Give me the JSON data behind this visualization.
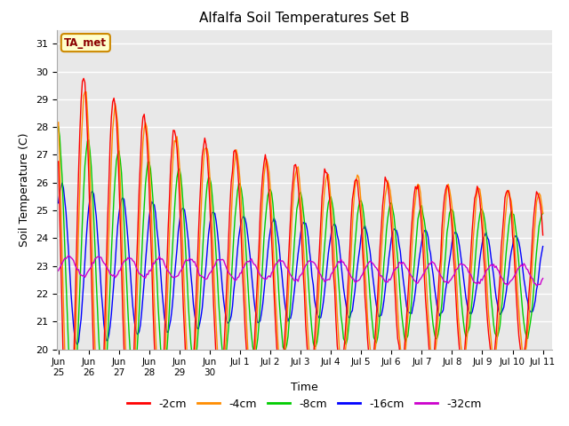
{
  "title": "Alfalfa Soil Temperatures Set B",
  "xlabel": "Time",
  "ylabel": "Soil Temperature (C)",
  "ylim": [
    20.0,
    31.5
  ],
  "yticks": [
    20.0,
    21.0,
    22.0,
    23.0,
    24.0,
    25.0,
    26.0,
    27.0,
    28.0,
    29.0,
    30.0,
    31.0
  ],
  "colors": {
    "-2cm": "#ff0000",
    "-4cm": "#ff8c00",
    "-8cm": "#00cc00",
    "-16cm": "#0000ff",
    "-32cm": "#cc00cc"
  },
  "legend_labels": [
    "-2cm",
    "-4cm",
    "-8cm",
    "-16cm",
    "-32cm"
  ],
  "annotation_text": "TA_met",
  "annotation_box_color": "#ffffcc",
  "annotation_box_edge": "#cc8800",
  "fig_bg_color": "#ffffff",
  "plot_bg_color": "#e8e8e8",
  "title_fontsize": 11,
  "axis_label_fontsize": 9,
  "tick_fontsize": 8,
  "legend_fontsize": 9,
  "line_width": 1.0
}
